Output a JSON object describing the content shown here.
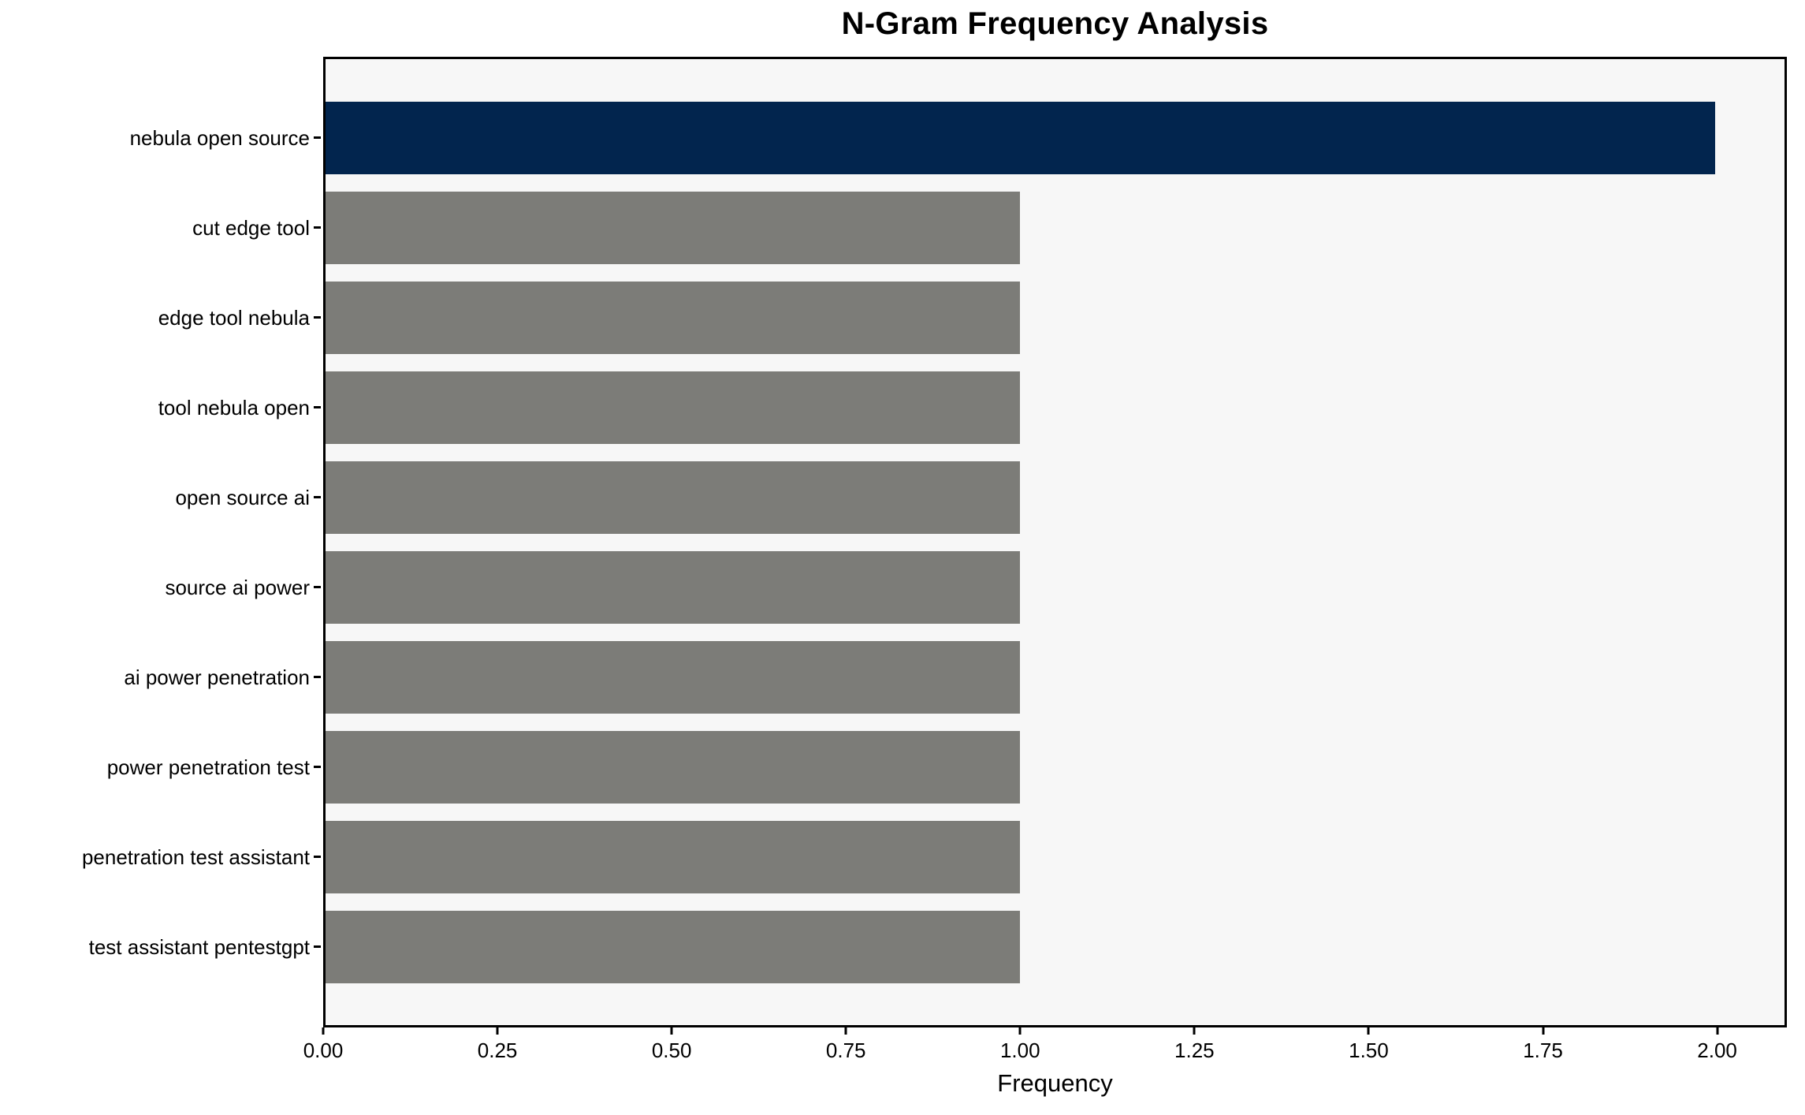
{
  "chart_data": {
    "type": "bar",
    "orientation": "horizontal",
    "title": "N-Gram Frequency Analysis",
    "xlabel": "Frequency",
    "ylabel": "",
    "categories": [
      "nebula open source",
      "cut edge tool",
      "edge tool nebula",
      "tool nebula open",
      "open source ai",
      "source ai power",
      "ai power penetration",
      "power penetration test",
      "penetration test assistant",
      "test assistant pentestgpt"
    ],
    "values": [
      2,
      1,
      1,
      1,
      1,
      1,
      1,
      1,
      1,
      1
    ],
    "xlim": [
      0,
      2.1
    ],
    "xtick_values": [
      0,
      0.25,
      0.5,
      0.75,
      1.0,
      1.25,
      1.5,
      1.75,
      2.0
    ],
    "xtick_labels": [
      "0.00",
      "0.25",
      "0.50",
      "0.75",
      "1.00",
      "1.25",
      "1.50",
      "1.75",
      "2.00"
    ],
    "grid": false,
    "legend": "none",
    "colors": {
      "highlight_bar": "#02254e",
      "default_bar": "#7c7c78",
      "plot_background": "#f7f7f7",
      "figure_background": "#ffffff",
      "spine": "#000000",
      "text": "#000000"
    },
    "bar_colors": [
      "#02254e",
      "#7c7c78",
      "#7c7c78",
      "#7c7c78",
      "#7c7c78",
      "#7c7c78",
      "#7c7c78",
      "#7c7c78",
      "#7c7c78",
      "#7c7c78"
    ]
  }
}
